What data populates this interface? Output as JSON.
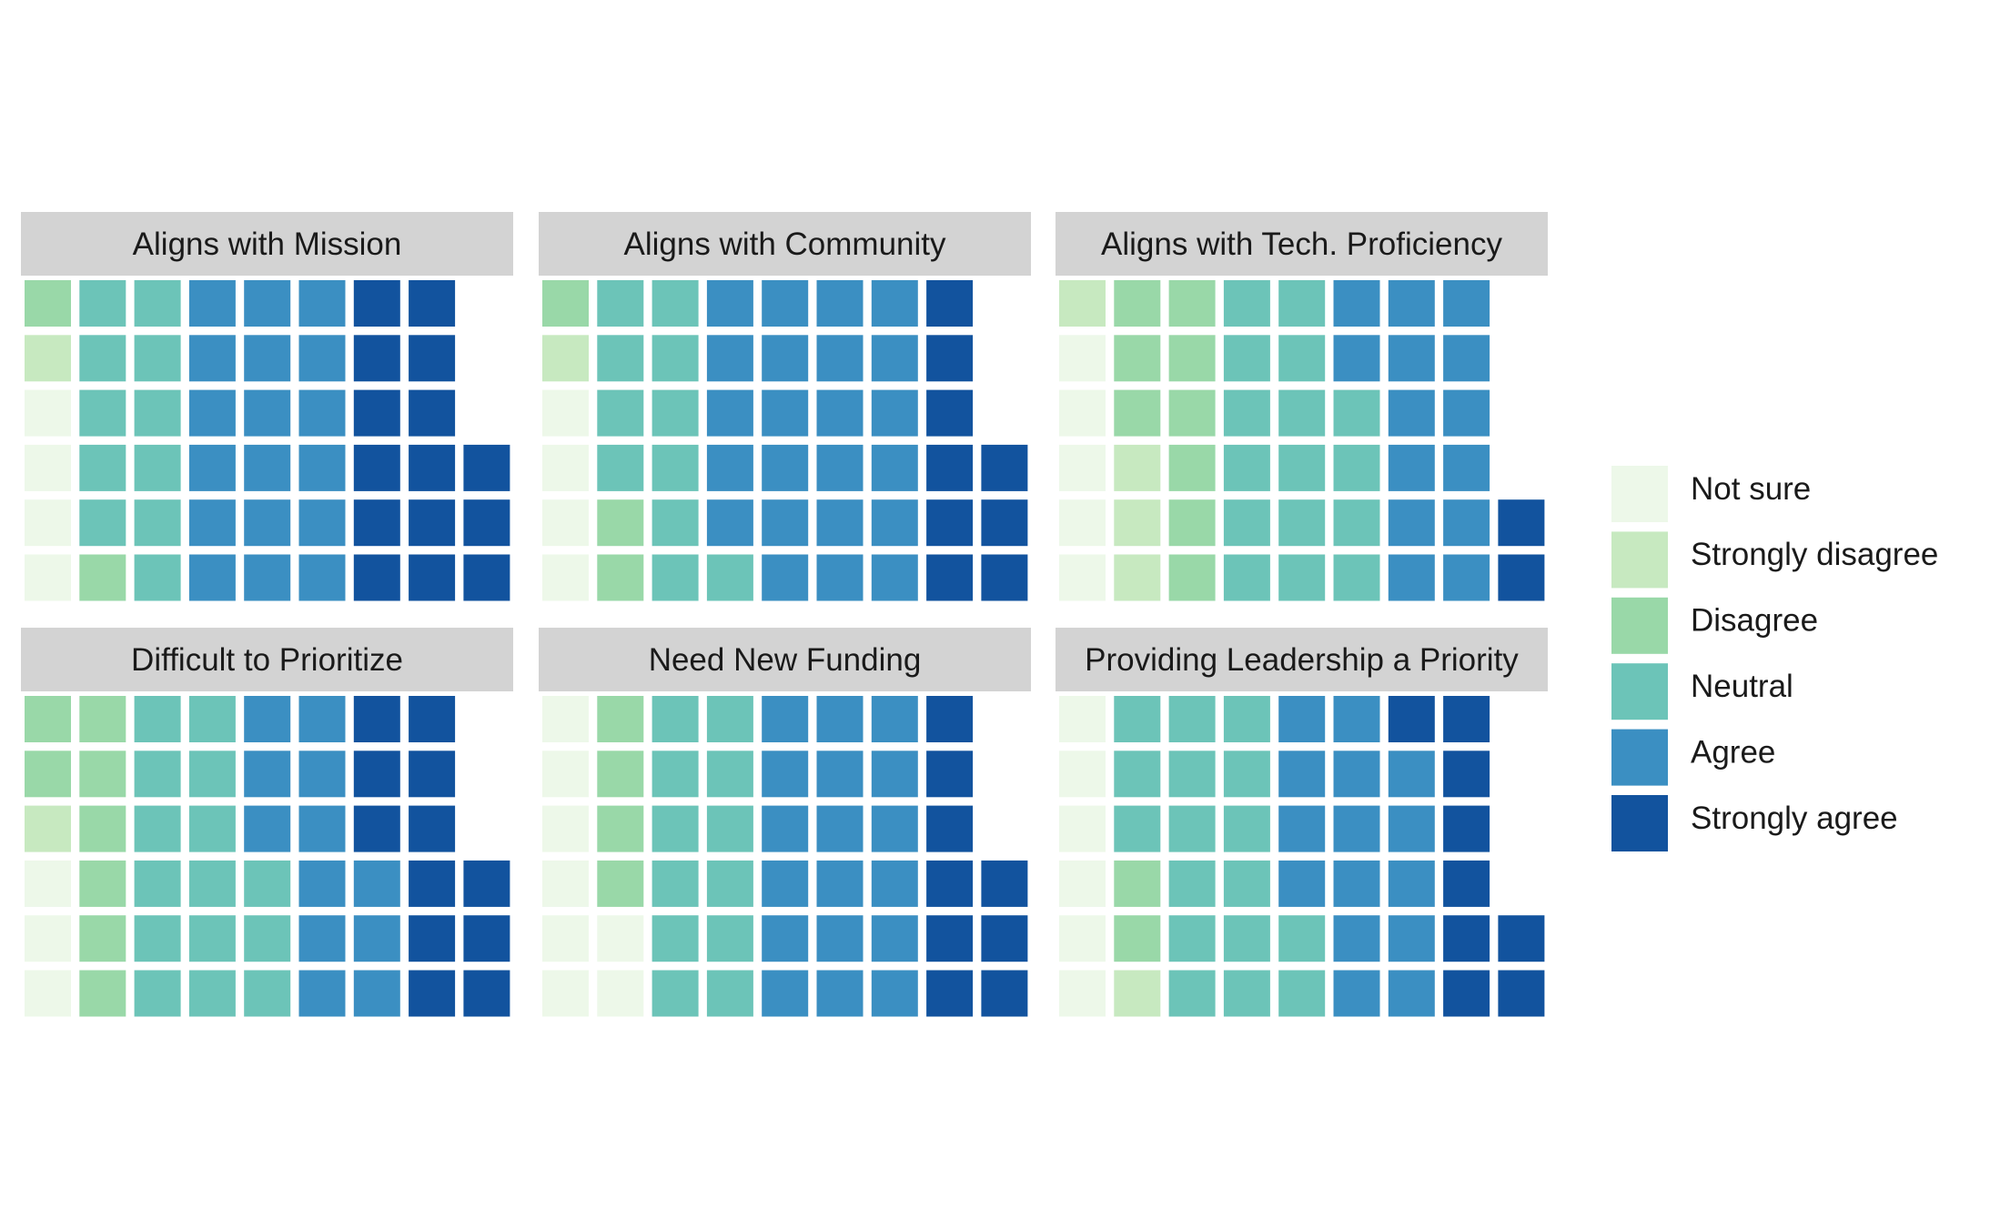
{
  "chart_data": {
    "type": "waffle",
    "legend_position": "right",
    "categories": [
      "Not sure",
      "Strongly disagree",
      "Disagree",
      "Neutral",
      "Agree",
      "Strongly agree"
    ],
    "colors": {
      "Not sure": "#edf8e9",
      "Strongly disagree": "#c7e9c0",
      "Disagree": "#99d8a8",
      "Neutral": "#6cc4b8",
      "Agree": "#3b8fc2",
      "Strongly agree": "#12539e"
    },
    "panels": [
      {
        "title": "Aligns with Mission",
        "counts": {
          "Not sure": 4,
          "Strongly disagree": 1,
          "Disagree": 2,
          "Neutral": 11,
          "Agree": 18,
          "Strongly agree": 15
        }
      },
      {
        "title": "Aligns with Community",
        "counts": {
          "Not sure": 4,
          "Strongly disagree": 1,
          "Disagree": 3,
          "Neutral": 11,
          "Agree": 23,
          "Strongly agree": 9
        }
      },
      {
        "title": "Aligns with Tech. Proficiency",
        "counts": {
          "Not sure": 5,
          "Strongly disagree": 4,
          "Disagree": 9,
          "Neutral": 16,
          "Agree": 14,
          "Strongly agree": 2
        }
      },
      {
        "title": "Difficult to Prioritize",
        "counts": {
          "Not sure": 3,
          "Strongly disagree": 1,
          "Disagree": 8,
          "Neutral": 15,
          "Agree": 12,
          "Strongly agree": 12
        }
      },
      {
        "title": "Need New Funding",
        "counts": {
          "Not sure": 8,
          "Strongly disagree": 0,
          "Disagree": 4,
          "Neutral": 12,
          "Agree": 18,
          "Strongly agree": 9
        }
      },
      {
        "title": "Providing Leadership a Priority",
        "counts": {
          "Not sure": 6,
          "Strongly disagree": 1,
          "Disagree": 2,
          "Neutral": 17,
          "Agree": 15,
          "Strongly agree": 9
        }
      }
    ]
  }
}
